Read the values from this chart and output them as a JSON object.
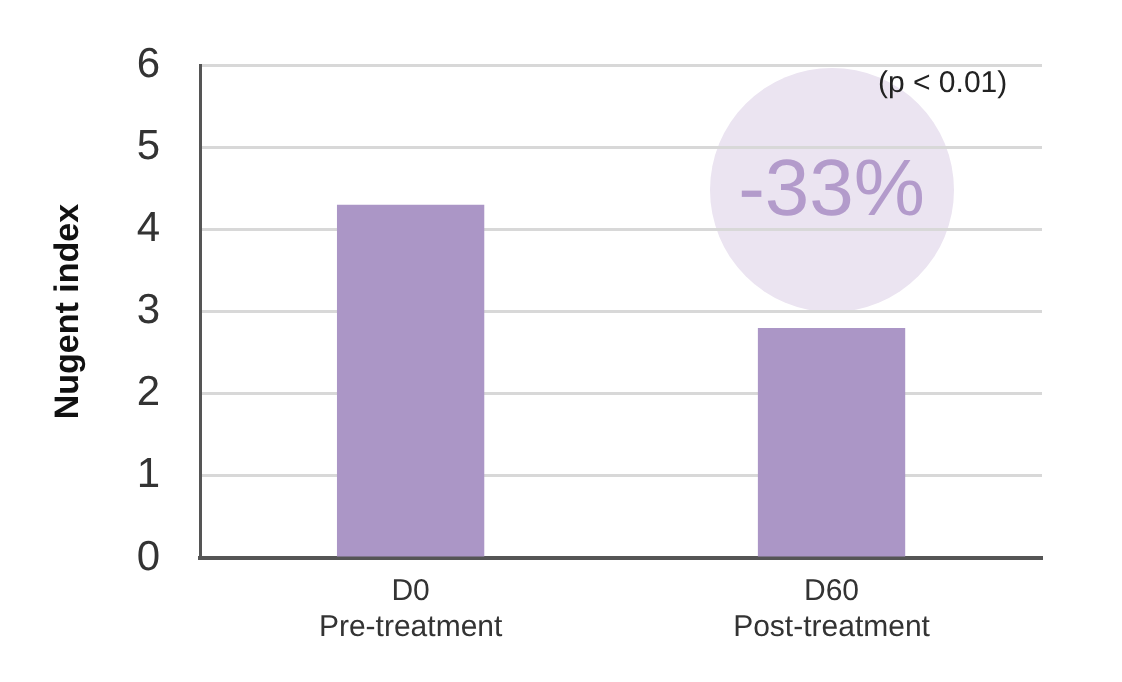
{
  "chart_data": {
    "type": "bar",
    "ylabel": "Nugent index",
    "categories": [
      "D0\nPre-treatment",
      "D60\nPost-treatment"
    ],
    "values": [
      4.3,
      2.8
    ],
    "color": "#ab96c6",
    "ylim": [
      0,
      6
    ],
    "yticks": [
      0,
      1,
      2,
      3,
      4,
      5,
      6
    ],
    "grid": "y",
    "annotations": [
      "(p < 0.01)",
      "-33%"
    ]
  }
}
